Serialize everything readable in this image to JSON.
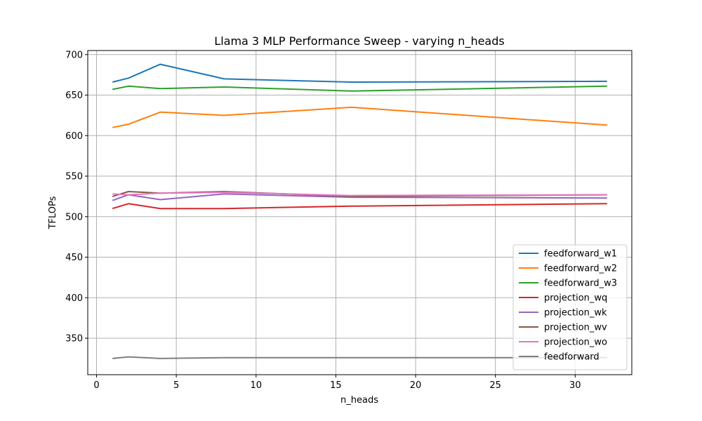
{
  "chart_data": {
    "type": "line",
    "title": "Llama 3 MLP Performance Sweep - varying n_heads",
    "xlabel": "n_heads",
    "ylabel": "TFLOPs",
    "x": [
      1,
      2,
      4,
      8,
      16,
      32
    ],
    "xlim": [
      -0.55,
      33.55
    ],
    "ylim": [
      305,
      705
    ],
    "xticks": [
      0,
      5,
      10,
      15,
      20,
      25,
      30
    ],
    "yticks": [
      350,
      400,
      450,
      500,
      550,
      600,
      650,
      700
    ],
    "grid": true,
    "legend_position": "lower-right",
    "series": [
      {
        "name": "feedforward_w1",
        "color": "#1f77b4",
        "values": [
          666,
          671,
          688,
          670,
          666,
          667
        ]
      },
      {
        "name": "feedforward_w2",
        "color": "#ff7f0e",
        "values": [
          610,
          614,
          629,
          625,
          635,
          613
        ]
      },
      {
        "name": "feedforward_w3",
        "color": "#2ca02c",
        "values": [
          657,
          661,
          658,
          660,
          655,
          661
        ]
      },
      {
        "name": "projection_wq",
        "color": "#d62728",
        "values": [
          510,
          516,
          510,
          510,
          513,
          516
        ]
      },
      {
        "name": "projection_wk",
        "color": "#9467bd",
        "values": [
          520,
          527,
          521,
          528,
          524,
          523
        ]
      },
      {
        "name": "projection_wv",
        "color": "#8c564b",
        "values": [
          525,
          531,
          529,
          531,
          525,
          527
        ]
      },
      {
        "name": "projection_wo",
        "color": "#e377c2",
        "values": [
          528,
          527,
          529,
          530,
          526,
          527
        ]
      },
      {
        "name": "feedforward",
        "color": "#7f7f7f",
        "values": [
          325,
          327,
          325,
          326,
          326,
          326
        ]
      }
    ]
  }
}
